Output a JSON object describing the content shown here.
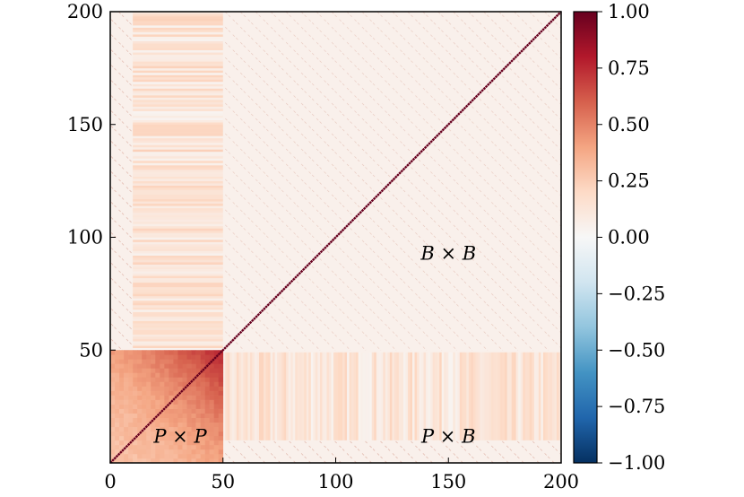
{
  "chart_data": {
    "type": "heatmap",
    "title": "",
    "xlabel": "",
    "ylabel": "",
    "xlim": [
      0,
      200
    ],
    "ylim": [
      0,
      200
    ],
    "x_ticks": [
      0,
      50,
      100,
      150,
      200
    ],
    "y_ticks": [
      50,
      100,
      150,
      200
    ],
    "x_tick_labels": [
      "0",
      "50",
      "100",
      "150",
      "200"
    ],
    "y_tick_labels": [
      "50",
      "100",
      "150",
      "200"
    ],
    "grid": false,
    "colormap": "RdBu_r",
    "colorbar": {
      "range": [
        -1.0,
        1.0
      ],
      "ticks": [
        1.0,
        0.75,
        0.5,
        0.25,
        0.0,
        -0.25,
        -0.5,
        -0.75,
        -1.0
      ],
      "tick_labels": [
        "1.00",
        "0.75",
        "0.50",
        "0.25",
        "0.00",
        "−0.25",
        "−0.50",
        "−0.75",
        "−1.00"
      ],
      "colors": [
        "#053061",
        "#2166ac",
        "#4393c3",
        "#92c5de",
        "#d1e5f0",
        "#f7f7f7",
        "#fddbc7",
        "#f4a582",
        "#d6604d",
        "#b2182b",
        "#67001f"
      ]
    },
    "blocks": [
      {
        "region": "P x P",
        "x_range": [
          0,
          50
        ],
        "y_range": [
          0,
          50
        ],
        "approx_value_range": [
          0.3,
          0.8
        ]
      },
      {
        "region": "B x B",
        "x_range": [
          50,
          200
        ],
        "y_range": [
          50,
          200
        ],
        "approx_value": 0.05
      },
      {
        "region": "P x B",
        "x_range": [
          50,
          200
        ],
        "y_range": [
          0,
          50
        ],
        "approx_value": 0.15
      },
      {
        "region": "B x P",
        "x_range": [
          0,
          50
        ],
        "y_range": [
          50,
          200
        ],
        "approx_value": 0.15
      }
    ],
    "diagonal_value": 1.0,
    "annotations": [
      {
        "label": "P",
        "op": "×",
        "label2": "P",
        "x": 31,
        "y": 9
      },
      {
        "label": "B",
        "op": "×",
        "label2": "B",
        "x": 150,
        "y": 90
      },
      {
        "label": "P",
        "op": "×",
        "label2": "B",
        "x": 150,
        "y": 9
      }
    ]
  }
}
